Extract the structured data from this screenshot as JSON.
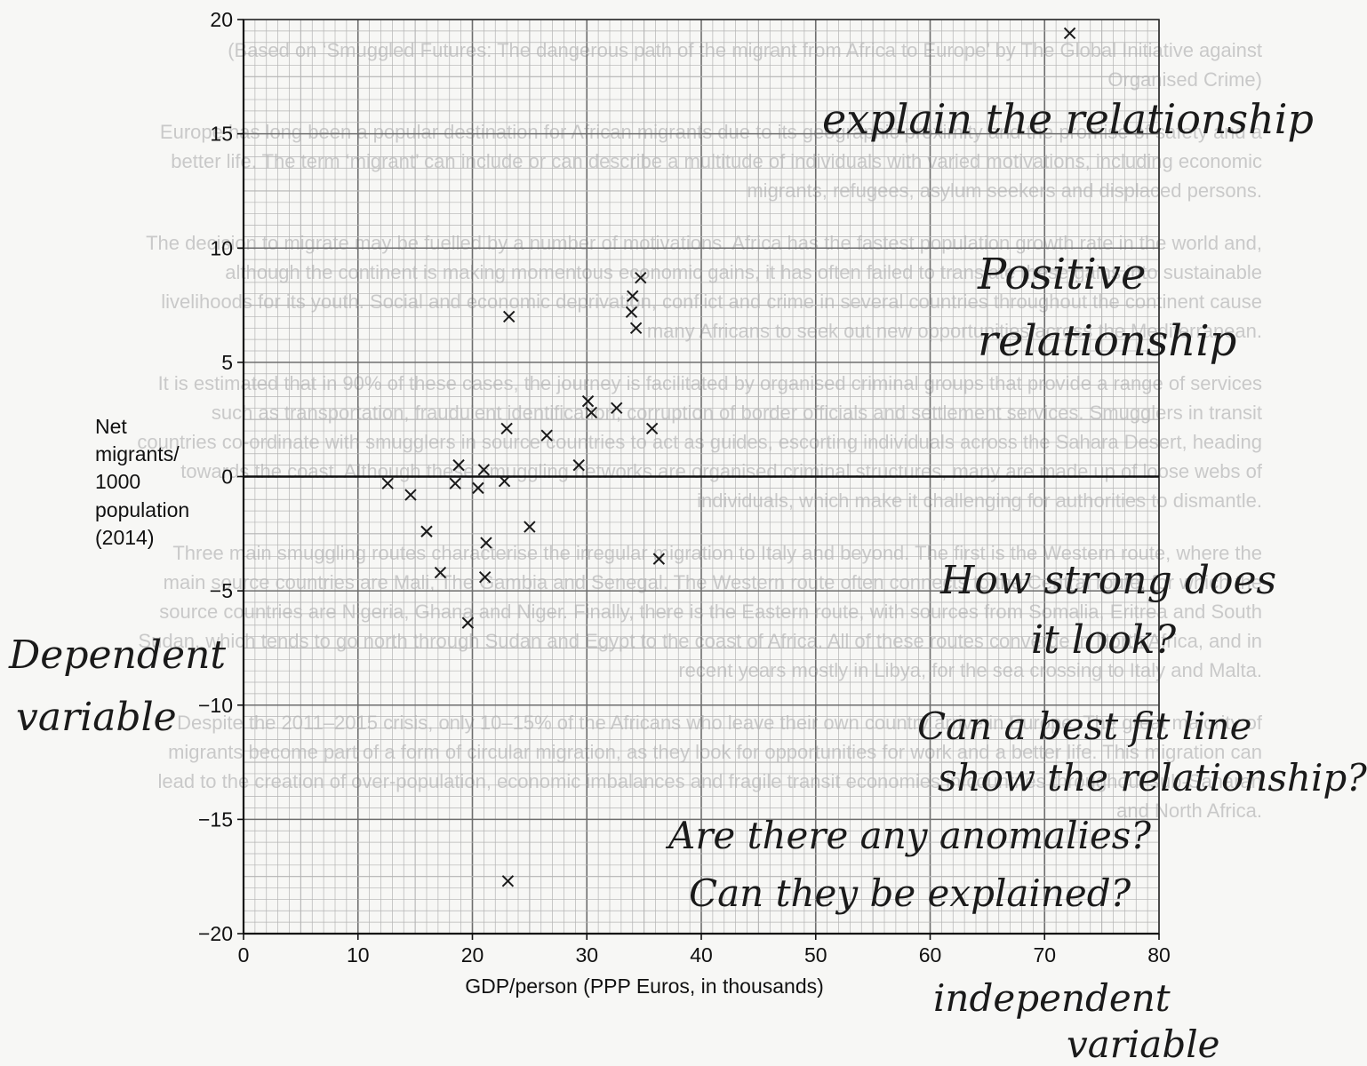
{
  "chart_data": {
    "type": "scatter",
    "xlabel": "GDP/person (PPP Euros, in thousands)",
    "ylabel_lines": [
      "Net",
      "migrants/",
      "1000",
      "population",
      "(2014)"
    ],
    "xlim": [
      0,
      80
    ],
    "ylim": [
      -20,
      20
    ],
    "x_ticks": [
      0,
      10,
      20,
      30,
      40,
      50,
      60,
      70,
      80
    ],
    "y_ticks": [
      20,
      15,
      10,
      5,
      0,
      -5,
      -10,
      -15,
      -20
    ],
    "y_tick_labels": [
      "20",
      "15",
      "10",
      "5",
      "0",
      "−5",
      "−10",
      "−15",
      "−20"
    ],
    "grid": true,
    "marker": "×",
    "points": [
      [
        72.2,
        19.4
      ],
      [
        34.7,
        8.7
      ],
      [
        34.0,
        7.9
      ],
      [
        33.9,
        7.2
      ],
      [
        34.3,
        6.5
      ],
      [
        23.2,
        7.0
      ],
      [
        30.1,
        3.3
      ],
      [
        30.4,
        2.8
      ],
      [
        32.6,
        3.0
      ],
      [
        23.0,
        2.1
      ],
      [
        26.5,
        1.8
      ],
      [
        35.7,
        2.1
      ],
      [
        29.3,
        0.5
      ],
      [
        18.8,
        0.5
      ],
      [
        21.0,
        0.3
      ],
      [
        12.6,
        -0.3
      ],
      [
        14.6,
        -0.8
      ],
      [
        18.5,
        -0.3
      ],
      [
        20.5,
        -0.5
      ],
      [
        22.8,
        -0.2
      ],
      [
        16.0,
        -2.4
      ],
      [
        25.0,
        -2.2
      ],
      [
        21.2,
        -2.9
      ],
      [
        36.3,
        -3.6
      ],
      [
        17.2,
        -4.2
      ],
      [
        21.1,
        -4.4
      ],
      [
        19.6,
        -6.4
      ],
      [
        23.1,
        -17.7
      ]
    ]
  },
  "background_text": [
    "(Based on ‘Smuggled Futures: The dangerous path of the migrant from Africa to Europe’ by The Global Initiative against Organised Crime)",
    "Europe has long been a popular destination for African migrants due to its geographic proximity and the promise of safety and a better life. The term ‘migrant’ can include or can describe a multitude of individuals with varied motivations, including economic migrants, refugees, asylum seekers and displaced persons.",
    "The decision to migrate may be fuelled by a number of motivations. Africa has the fastest population growth rate in the world and, although the continent is making momentous economic gains, it has often failed to translate these gains into sustainable livelihoods for its youth. Social and economic deprivation, conflict and crime in several countries throughout the continent cause many Africans to seek out new opportunities across the Mediterranean.",
    "It is estimated that in 90% of these cases, the journey is facilitated by organised criminal groups that provide a range of services such as transportation, fraudulent identification, corruption of border officials and settlement services. Smugglers in transit countries co-ordinate with smugglers in source countries to act as guides, escorting individuals across the Sahara Desert, heading towards the coast. Although these smuggling networks are organised criminal structures, many are made up of loose webs of individuals, which make it challenging for authorities to dismantle.",
    "Three main smuggling routes characterise the irregular migration to Italy and beyond. The first is the Western route, where the main source countries are Mali, The Gambia and Senegal. The Western route often connects to the Central route, for which the source countries are Nigeria, Ghana and Niger. Finally, there is the Eastern route, with sources from Somalia, Eritrea and South Sudan, which tends to go north through Sudan and Egypt to the coast of Africa. All of these routes converge in North Africa, and in recent years mostly in Libya, for the sea crossing to Italy and Malta.",
    "Despite the 2011–2015 crisis, only 10–15% of the Africans who leave their own country arrive in Europe. The great majority of migrants become part of a form of circular migration, as they look for opportunities for work and a better life. This migration can lead to the creation of over-population, economic imbalances and fragile transit economies in countries throughout sub-Saharan and North Africa."
  ],
  "annotations": {
    "top_note": "explain the relationship",
    "positive_1": "Positive",
    "positive_2": "relationship",
    "strong_1": "How strong does",
    "strong_2": "it look?",
    "bestfit_1": "Can a best fit line",
    "bestfit_2": "show the relationship?",
    "anom_1": "Are there any anomalies?",
    "anom_2": "Can they be explained?",
    "dep_1": "Dependent",
    "dep_2": "variable",
    "indep_1": "independent",
    "indep_2": "variable"
  },
  "colors": {
    "ink": "#1a1a1a",
    "grid_minor": "#b4b4b4",
    "grid_major": "#6e6e6e",
    "ghost_text": "#c9c9c9"
  }
}
